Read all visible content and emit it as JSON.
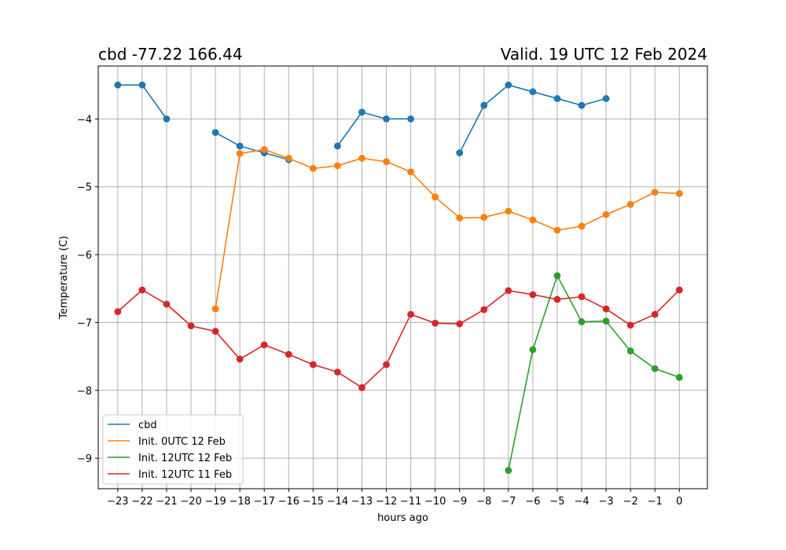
{
  "chart_data": {
    "type": "line",
    "title_left": "cbd -77.22 166.44",
    "title_right": "Valid. 19 UTC 12 Feb 2024",
    "xlabel": "hours ago",
    "ylabel": "Temperature (C)",
    "xlim": [
      -23.8,
      1.15
    ],
    "ylim": [
      -9.45,
      -3.22
    ],
    "grid": true,
    "legend_position": "lower-left",
    "x_ticks": [
      -23,
      -22,
      -21,
      -20,
      -19,
      -18,
      -17,
      -16,
      -15,
      -14,
      -13,
      -12,
      -11,
      -10,
      -9,
      -8,
      -7,
      -6,
      -5,
      -4,
      -3,
      -2,
      -1,
      0
    ],
    "x_tick_labels": [
      "−23",
      "−22",
      "−21",
      "−20",
      "−19",
      "−18",
      "−17",
      "−16",
      "−15",
      "−14",
      "−13",
      "−12",
      "−11",
      "−10",
      "−9",
      "−8",
      "−7",
      "−6",
      "−5",
      "−4",
      "−3",
      "−2",
      "−1",
      "0"
    ],
    "y_ticks": [
      -9,
      -8,
      -7,
      -6,
      -5,
      -4
    ],
    "y_tick_labels": [
      "−9",
      "−8",
      "−7",
      "−6",
      "−5",
      "−4"
    ],
    "series": [
      {
        "name": "cbd",
        "color": "#1f77b4",
        "x": [
          -23,
          -22,
          -21,
          -20,
          -19,
          -18,
          -17,
          -16,
          -15,
          -14,
          -13,
          -12,
          -11,
          -10,
          -9,
          -8,
          -7,
          -6,
          -5,
          -4,
          -3
        ],
        "y": [
          -3.5,
          -3.5,
          -4.0,
          null,
          -4.2,
          -4.4,
          -4.5,
          -4.6,
          null,
          -4.4,
          -3.9,
          -4.0,
          -4.0,
          null,
          -4.5,
          -3.8,
          -3.5,
          -3.6,
          -3.7,
          -3.8,
          -3.7
        ]
      },
      {
        "name": "Init. 0UTC 12 Feb",
        "color": "#ff7f0e",
        "x": [
          -19,
          -18,
          -17,
          -16,
          -15,
          -14,
          -13,
          -12,
          -11,
          -10,
          -9,
          -8,
          -7,
          -6,
          -5,
          -4,
          -3,
          -2,
          -1,
          0
        ],
        "y": [
          -6.8,
          -4.51,
          -4.45,
          -4.58,
          -4.73,
          -4.69,
          -4.58,
          -4.63,
          -4.78,
          -5.15,
          -5.46,
          -5.45,
          -5.36,
          -5.49,
          -5.64,
          -5.58,
          -5.41,
          -5.26,
          -5.08,
          -5.1
        ]
      },
      {
        "name": "Init. 12UTC 12 Feb",
        "color": "#2ca02c",
        "x": [
          -7,
          -6,
          -5,
          -4,
          -3,
          -2,
          -1,
          0
        ],
        "y": [
          -9.18,
          -7.4,
          -6.31,
          -6.99,
          -6.98,
          -7.42,
          -7.68,
          -7.81
        ]
      },
      {
        "name": "Init. 12UTC 11 Feb",
        "color": "#d62728",
        "x": [
          -23,
          -22,
          -21,
          -20,
          -19,
          -18,
          -17,
          -16,
          -15,
          -14,
          -13,
          -12,
          -11,
          -10,
          -9,
          -8,
          -7,
          -6,
          -5,
          -4,
          -3,
          -2,
          -1,
          0
        ],
        "y": [
          -6.84,
          -6.52,
          -6.73,
          -7.05,
          -7.13,
          -7.54,
          -7.33,
          -7.47,
          -7.62,
          -7.73,
          -7.96,
          -7.62,
          -6.88,
          -7.01,
          -7.02,
          -6.81,
          -6.53,
          -6.59,
          -6.66,
          -6.62,
          -6.8,
          -7.04,
          -6.88,
          -6.52
        ]
      }
    ]
  }
}
